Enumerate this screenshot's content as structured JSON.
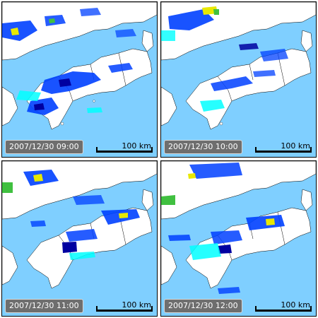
{
  "panels": [
    {
      "timestamp": "2007/12/30 09:00",
      "scale_label": "100 km"
    },
    {
      "timestamp": "2007/12/30 10:00",
      "scale_label": "100 km"
    },
    {
      "timestamp": "2007/12/30 11:00",
      "scale_label": "100 km"
    },
    {
      "timestamp": "2007/12/30 12:00",
      "scale_label": "100 km"
    }
  ],
  "colors": {
    "sea": "#7fcfff",
    "land": "#ffffff",
    "border": "#000000",
    "precip_light": "#00ffff",
    "precip_medium": "#0040ff",
    "precip_heavy": "#0000a0",
    "precip_high": "#e8e800",
    "precip_green": "#40c040"
  }
}
